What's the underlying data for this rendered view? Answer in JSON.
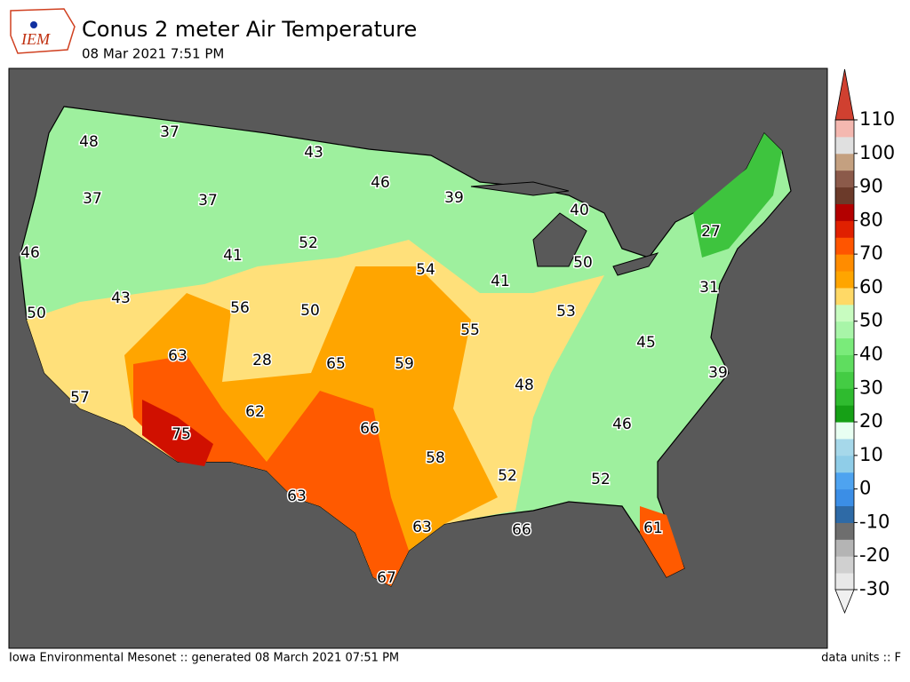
{
  "header": {
    "logo": "IEM",
    "title": "Conus 2 meter Air Temperature",
    "subtitle": "08 Mar 2021 7:51 PM"
  },
  "map": {
    "labels": [
      48,
      37,
      43,
      46,
      39,
      40,
      37,
      37,
      27,
      46,
      52,
      41,
      54,
      50,
      43,
      56,
      50,
      41,
      31,
      53,
      55,
      50,
      45,
      63,
      28,
      65,
      59,
      48,
      39,
      57,
      62,
      75,
      66,
      46,
      58,
      52,
      52,
      63,
      63,
      66,
      61,
      67
    ]
  },
  "colorbar": {
    "ticks": [
      -30,
      -20,
      -10,
      0,
      10,
      20,
      30,
      40,
      50,
      60,
      70,
      80,
      90,
      100,
      110
    ],
    "colors": [
      "#e8e8e8",
      "#d0d0d0",
      "#b4b4b4",
      "#6e6e6e",
      "#2e6aa6",
      "#3b8ee6",
      "#4ea3f0",
      "#8fcde8",
      "#a6d8ea",
      "#e8fff2",
      "#16a016",
      "#2fbb2f",
      "#44cc44",
      "#5fdd5f",
      "#7aeb7a",
      "#a8f5a8",
      "#c8fcc0",
      "#ffd966",
      "#ffa500",
      "#ff8c00",
      "#ff5500",
      "#e02000",
      "#b30000",
      "#6b3a2a",
      "#8b5a4a",
      "#c4a080",
      "#e0e0e0",
      "#f4b8b0"
    ],
    "under": "#f0f0f0",
    "over": "#d04030"
  },
  "footer": {
    "left": "Iowa Environmental Mesonet :: generated 08 March 2021 07:51 PM",
    "right": "data units :: F"
  }
}
